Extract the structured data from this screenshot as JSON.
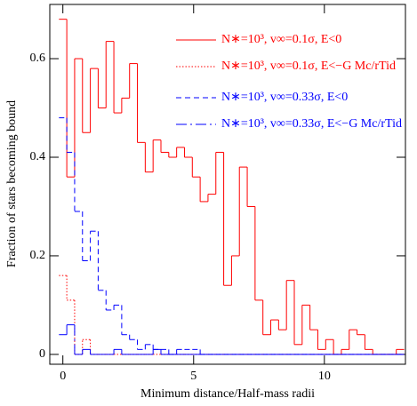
{
  "chart_data": {
    "type": "histogram",
    "x_label": "Minimum distance/Half-mass radii",
    "y_label": "Fraction of stars becoming bound",
    "bins": [
      -0.15,
      0.15,
      0.45,
      0.75,
      1.05,
      1.35,
      1.65,
      1.95,
      2.25,
      2.55,
      2.85,
      3.15,
      3.45,
      3.75,
      4.05,
      4.35,
      4.65,
      4.95,
      5.25,
      5.55,
      5.85,
      6.15,
      6.45,
      6.75,
      7.05,
      7.35,
      7.65,
      7.95,
      8.25,
      8.55,
      8.85,
      9.15,
      9.45,
      9.75,
      10.05,
      10.35,
      10.65,
      10.95,
      11.25,
      11.55,
      11.85,
      12.15,
      12.45,
      12.75,
      13.05
    ],
    "series": [
      {
        "name": "N∗=10³,  v∞=0.1σ,  E<0",
        "color": "#ff0000",
        "dash": "solid",
        "values": [
          0.68,
          0.36,
          0.6,
          0.45,
          0.58,
          0.5,
          0.635,
          0.49,
          0.52,
          0.59,
          0.43,
          0.37,
          0.435,
          0.41,
          0.4,
          0.42,
          0.4,
          0.36,
          0.31,
          0.325,
          0.41,
          0.14,
          0.2,
          0.38,
          0.3,
          0.11,
          0.04,
          0.07,
          0.05,
          0.15,
          0.02,
          0.1,
          0.05,
          0.01,
          0.03,
          0,
          0.01,
          0.05,
          0.04,
          0.01,
          0,
          0,
          0,
          0.01
        ]
      },
      {
        "name": "N∗=10³,  v∞=0.1σ,  E<−G Mc/rTid",
        "color": "#ff0000",
        "dash": "dotted",
        "values": [
          0.16,
          0.11,
          0,
          0.03,
          0,
          0,
          0,
          0,
          0,
          0,
          0,
          0,
          0,
          0,
          0,
          0,
          0,
          0,
          0,
          0,
          0,
          0,
          0,
          0,
          0,
          0,
          0,
          0,
          0,
          0,
          0,
          0,
          0,
          0,
          0,
          0,
          0,
          0,
          0,
          0,
          0,
          0,
          0,
          0
        ]
      },
      {
        "name": "N∗=10³,  v∞=0.33σ,  E<0",
        "color": "#0000ff",
        "dash": "dashed",
        "values": [
          0.48,
          0.41,
          0.29,
          0.19,
          0.25,
          0.13,
          0.09,
          0.1,
          0.04,
          0.03,
          0.01,
          0.02,
          0.01,
          0.01,
          0,
          0.01,
          0.01,
          0.01,
          0,
          0,
          0,
          0,
          0,
          0,
          0,
          0,
          0,
          0,
          0,
          0,
          0,
          0,
          0,
          0,
          0,
          0,
          0,
          0,
          0,
          0,
          0,
          0,
          0,
          0
        ]
      },
      {
        "name": "N∗=10³,  v∞=0.33σ,  E<−G Mc/rTid",
        "color": "#0000ff",
        "dash": "dashdot",
        "values": [
          0.04,
          0.06,
          0,
          0.01,
          0,
          0,
          0,
          0.01,
          0,
          0,
          0,
          0,
          0.01,
          0,
          0,
          0,
          0,
          0,
          0,
          0,
          0,
          0,
          0,
          0,
          0,
          0,
          0,
          0,
          0,
          0,
          0,
          0,
          0,
          0,
          0,
          0,
          0,
          0,
          0,
          0,
          0,
          0,
          0,
          0
        ]
      }
    ],
    "xlim": [
      -0.5,
      13.1
    ],
    "ylim": [
      -0.02,
      0.71
    ],
    "xticks": [
      0,
      5,
      10
    ],
    "yticks": [
      0,
      0.2,
      0.4,
      0.6
    ]
  }
}
